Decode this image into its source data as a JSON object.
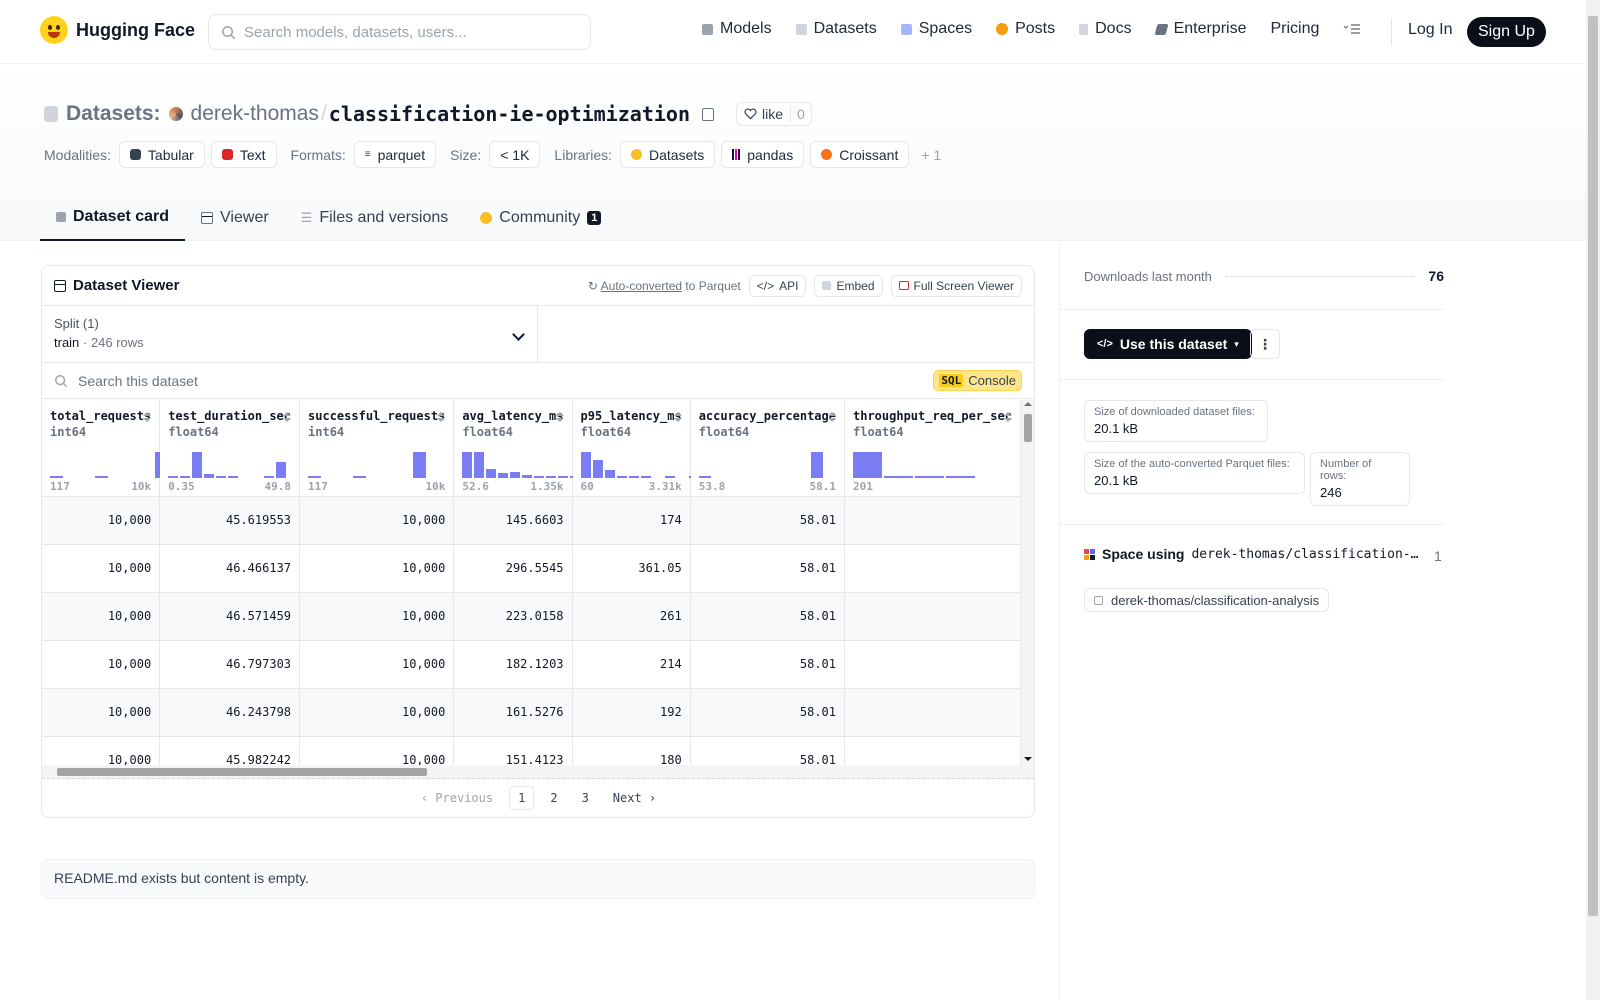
{
  "nav": {
    "brand": "Hugging Face",
    "search_placeholder": "Search models, datasets, users...",
    "links": [
      {
        "label": "Models",
        "icon": "models-icon",
        "color": "#9ca3af"
      },
      {
        "label": "Datasets",
        "icon": "datasets-icon",
        "color": "#d1d5db"
      },
      {
        "label": "Spaces",
        "icon": "spaces-icon",
        "color": "#a5b4fc"
      },
      {
        "label": "Posts",
        "icon": "posts-icon",
        "color": "#f59e0b"
      },
      {
        "label": "Docs",
        "icon": "docs-icon",
        "color": "#d1d5db"
      },
      {
        "label": "Enterprise",
        "icon": "enterprise-icon",
        "color": "#6b7280"
      },
      {
        "label": "Pricing",
        "icon": "",
        "color": ""
      }
    ],
    "login": "Log In",
    "signup": "Sign Up"
  },
  "header": {
    "prefix": "Datasets:",
    "owner": "derek-thomas",
    "separator": "/",
    "name": "classification-ie-optimization",
    "like_label": "like",
    "like_count": "0",
    "modalities_label": "Modalities:",
    "modalities": [
      "Tabular",
      "Text"
    ],
    "formats_label": "Formats:",
    "formats": [
      "parquet"
    ],
    "size_label": "Size:",
    "size": "< 1K",
    "libraries_label": "Libraries:",
    "libraries": [
      "Datasets",
      "pandas",
      "Croissant"
    ],
    "libraries_more": "+ 1"
  },
  "tabs": [
    {
      "label": "Dataset card",
      "active": true
    },
    {
      "label": "Viewer",
      "active": false
    },
    {
      "label": "Files and versions",
      "active": false
    },
    {
      "label": "Community",
      "active": false,
      "badge": "1"
    }
  ],
  "viewer": {
    "title": "Dataset Viewer",
    "auto_converted": "Auto-converted",
    "to_parquet": "to Parquet",
    "api": "API",
    "embed": "Embed",
    "fullscreen": "Full Screen Viewer",
    "split_label": "Split (1)",
    "split_name": "train",
    "split_rows": "246 rows",
    "search_placeholder": "Search this dataset",
    "sql_tag": "SQL",
    "console": "Console",
    "columns": [
      {
        "name": "total_requests",
        "type": "int64",
        "min": "117",
        "max": "10k",
        "hist": [
          0.08,
          0,
          0,
          0.06,
          0,
          0,
          0,
          1.0
        ]
      },
      {
        "name": "test_duration_sec",
        "type": "float64",
        "min": "0.35",
        "max": "49.8",
        "hist": [
          0.06,
          0.06,
          1.0,
          0.15,
          0.05,
          0.05,
          0,
          0,
          0.05,
          0.6
        ]
      },
      {
        "name": "successful_requests",
        "type": "int64",
        "min": "117",
        "max": "10k",
        "hist": [
          0.08,
          0,
          0,
          0.06,
          0,
          0,
          0,
          1.0
        ]
      },
      {
        "name": "avg_latency_ms",
        "type": "float64",
        "min": "52.6",
        "max": "1.35k",
        "hist": [
          1.0,
          1.0,
          0.35,
          0.2,
          0.22,
          0.1,
          0.06,
          0.05,
          0.05,
          0.05
        ]
      },
      {
        "name": "p95_latency_ms",
        "type": "float64",
        "min": "60",
        "max": "3.31k",
        "hist": [
          1.0,
          0.7,
          0.3,
          0.06,
          0.05,
          0.04,
          0,
          0.05,
          0,
          0.05
        ]
      },
      {
        "name": "accuracy_percentage",
        "type": "float64",
        "min": "53.8",
        "max": "58.1",
        "hist": [
          0.06,
          0,
          0,
          0,
          0,
          0,
          0,
          0,
          1.0
        ]
      },
      {
        "name": "throughput_req_per_sec",
        "type": "float64",
        "min": "201",
        "max": "",
        "hist": [
          1.0,
          0.05,
          0.05,
          0.05
        ]
      }
    ],
    "rows": [
      [
        "10,000",
        "45.619553",
        "10,000",
        "145.6603",
        "174",
        "58.01",
        ""
      ],
      [
        "10,000",
        "46.466137",
        "10,000",
        "296.5545",
        "361.05",
        "58.01",
        ""
      ],
      [
        "10,000",
        "46.571459",
        "10,000",
        "223.0158",
        "261",
        "58.01",
        ""
      ],
      [
        "10,000",
        "46.797303",
        "10,000",
        "182.1203",
        "214",
        "58.01",
        ""
      ],
      [
        "10,000",
        "46.243798",
        "10,000",
        "161.5276",
        "192",
        "58.01",
        ""
      ],
      [
        "10,000",
        "45.982242",
        "10,000",
        "151.4123",
        "180",
        "58.01",
        ""
      ]
    ],
    "pager": {
      "previous": "Previous",
      "pages": [
        "1",
        "2",
        "3"
      ],
      "current": "1",
      "next": "Next"
    }
  },
  "readme_text": "README.md exists but content is empty.",
  "sidebar": {
    "downloads_label": "Downloads last month",
    "downloads_value": "76",
    "use_button": "Use this dataset",
    "stats": [
      {
        "label": "Size of downloaded dataset files:",
        "value": "20.1 kB"
      },
      {
        "label": "Size of the auto-converted Parquet files:",
        "value": "20.1 kB"
      },
      {
        "label": "Number of rows:",
        "value": "246"
      }
    ],
    "space_using_label": "Space using",
    "space_using_name": "derek-thomas/classification-…",
    "space_count": "1",
    "space_item": "derek-thomas/classification-analysis"
  }
}
